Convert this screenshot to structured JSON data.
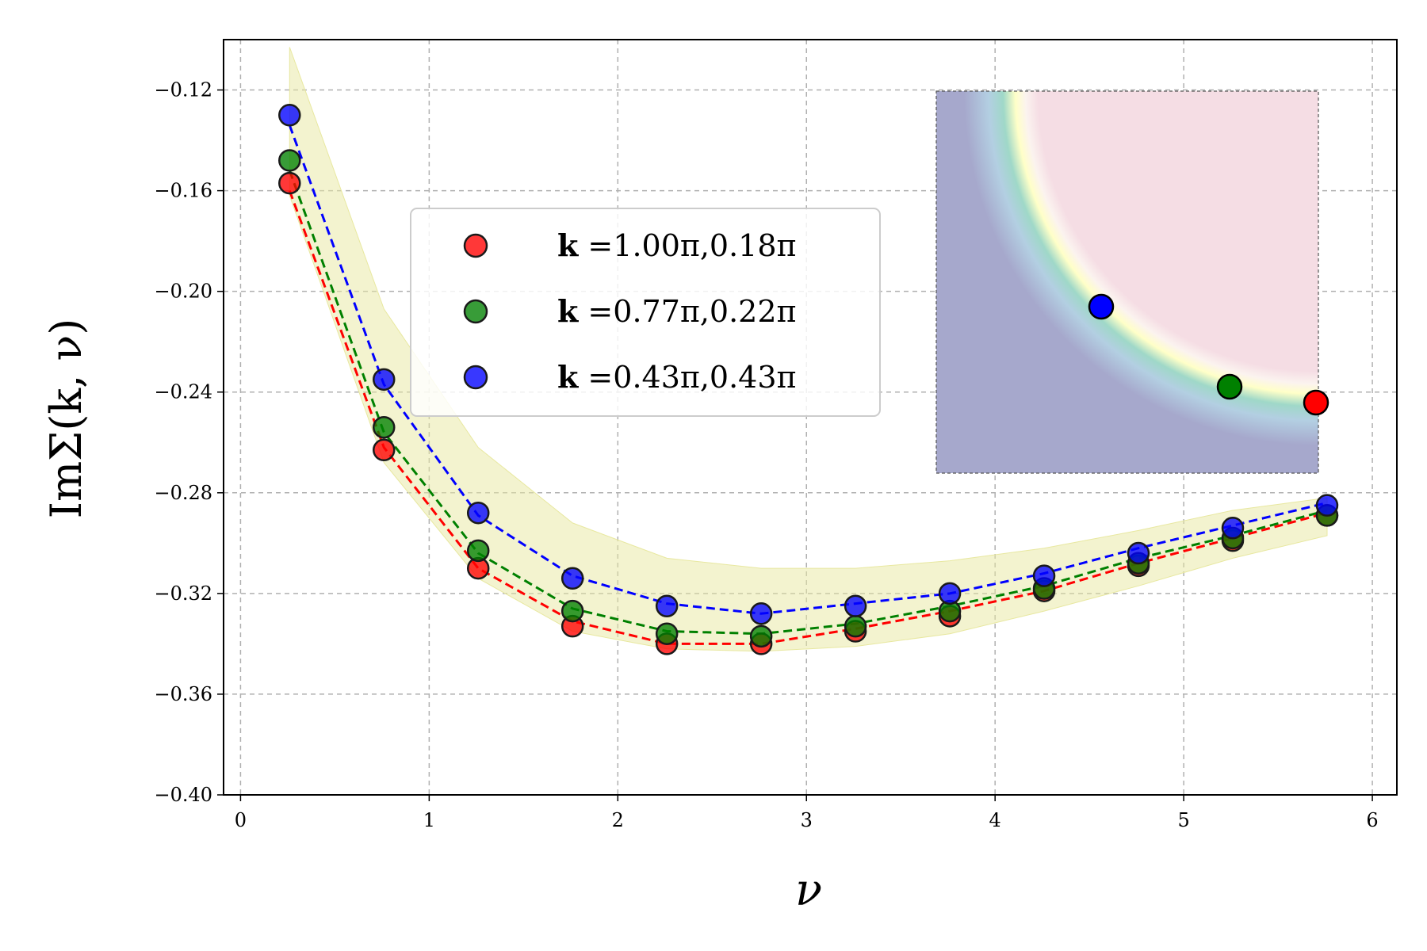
{
  "chart_data": {
    "type": "scatter",
    "xlabel": "ν",
    "ylabel": "ImΣ(k, ν)",
    "xlim": [
      -0.09,
      6.13
    ],
    "ylim": [
      -0.4,
      -0.1
    ],
    "xticks": [
      0,
      1,
      2,
      3,
      4,
      5,
      6
    ],
    "xtick_labels": [
      "0",
      "1",
      "2",
      "3",
      "4",
      "5",
      "6"
    ],
    "yticks": [
      -0.12,
      -0.16,
      -0.2,
      -0.24,
      -0.28,
      -0.32,
      -0.36,
      -0.4
    ],
    "ytick_labels": [
      "−0.12",
      "−0.16",
      "−0.20",
      "−0.24",
      "−0.28",
      "−0.32",
      "−0.36",
      "−0.40"
    ],
    "grid": true,
    "legend_position": "upper-center",
    "x": [
      0.26,
      0.76,
      1.26,
      1.76,
      2.26,
      2.76,
      3.26,
      3.76,
      4.26,
      4.76,
      5.26,
      5.76
    ],
    "series": [
      {
        "name": "k =1.00π,0.18π",
        "color": "#ff0000",
        "values": [
          -0.157,
          -0.263,
          -0.31,
          -0.333,
          -0.34,
          -0.34,
          -0.335,
          -0.329,
          -0.319,
          -0.309,
          -0.299,
          -0.289
        ],
        "line_values": [
          -0.16,
          -0.262,
          -0.31,
          -0.331,
          -0.34,
          -0.34,
          -0.334,
          -0.327,
          -0.319,
          -0.308,
          -0.298,
          -0.288
        ]
      },
      {
        "name": "k =0.77π,0.22π",
        "color": "#008000",
        "values": [
          -0.148,
          -0.254,
          -0.303,
          -0.327,
          -0.336,
          -0.337,
          -0.333,
          -0.327,
          -0.318,
          -0.308,
          -0.298,
          -0.289
        ],
        "line_values": [
          -0.152,
          -0.256,
          -0.304,
          -0.326,
          -0.335,
          -0.336,
          -0.332,
          -0.325,
          -0.317,
          -0.306,
          -0.297,
          -0.287
        ]
      },
      {
        "name": "k =0.43π,0.43π",
        "color": "#0000ff",
        "values": [
          -0.13,
          -0.235,
          -0.288,
          -0.314,
          -0.325,
          -0.328,
          -0.325,
          -0.32,
          -0.313,
          -0.304,
          -0.294,
          -0.285
        ],
        "line_values": [
          -0.134,
          -0.237,
          -0.289,
          -0.313,
          -0.324,
          -0.328,
          -0.324,
          -0.32,
          -0.312,
          -0.302,
          -0.293,
          -0.284
        ]
      }
    ],
    "band": {
      "color": "#e8e8a0",
      "x": [
        0.26,
        0.76,
        1.26,
        1.76,
        2.26,
        2.76,
        3.26,
        3.76,
        4.26,
        4.76,
        5.26,
        5.76
      ],
      "upper": [
        -0.103,
        -0.207,
        -0.262,
        -0.292,
        -0.306,
        -0.31,
        -0.31,
        -0.307,
        -0.302,
        -0.295,
        -0.287,
        -0.282
      ],
      "lower": [
        -0.162,
        -0.268,
        -0.314,
        -0.335,
        -0.342,
        -0.343,
        -0.341,
        -0.336,
        -0.327,
        -0.317,
        -0.306,
        -0.297
      ]
    },
    "inset": {
      "type": "heatmap",
      "colors": {
        "inner": "#a6a8cc",
        "outer": "#f5dde4",
        "boundary_light": "#ffffc8",
        "boundary_teal": "#9fd8c8"
      },
      "points": [
        {
          "label": "k =0.43π,0.43π",
          "color": "#0000ff"
        },
        {
          "label": "k =0.77π,0.22π",
          "color": "#008000"
        },
        {
          "label": "k =1.00π,0.18π",
          "color": "#ff0000"
        }
      ]
    }
  }
}
